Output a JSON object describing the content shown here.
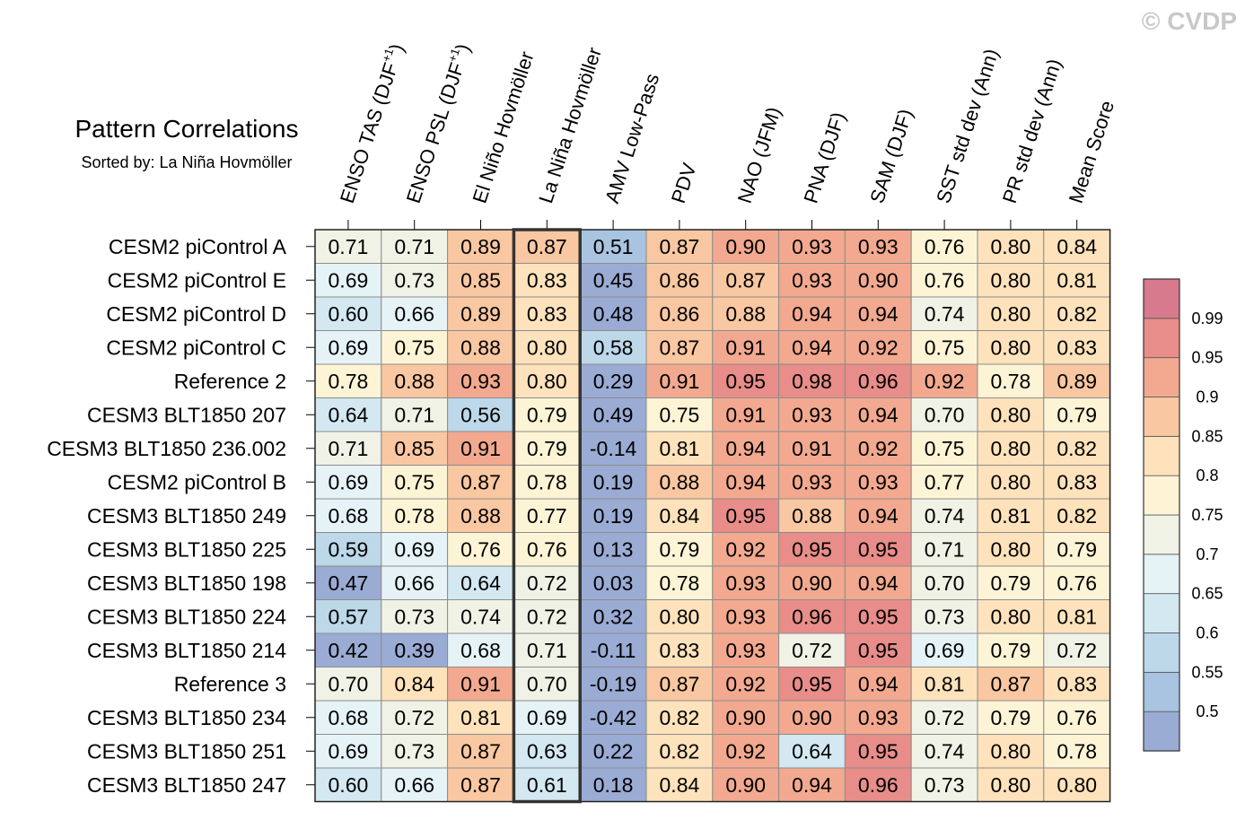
{
  "watermark": "© CVDP",
  "chart_data": {
    "type": "heatmap",
    "title": "Pattern Correlations",
    "subtitle": "Sorted by: La Niña Hovmöller",
    "columns": [
      {
        "name": "ENSO TAS (DJF",
        "sup": "+1",
        "close": ")"
      },
      {
        "name": "ENSO PSL (DJF",
        "sup": "+1",
        "close": ")"
      },
      {
        "name": "El Niño Hovmöller",
        "sup": "",
        "close": ""
      },
      {
        "name": "La Niña Hovmöller",
        "sup": "",
        "close": ""
      },
      {
        "name": "AMV Low-Pass",
        "sup": "",
        "close": ""
      },
      {
        "name": "PDV",
        "sup": "",
        "close": ""
      },
      {
        "name": "NAO (JFM)",
        "sup": "",
        "close": ""
      },
      {
        "name": "PNA (DJF)",
        "sup": "",
        "close": ""
      },
      {
        "name": "SAM (DJF)",
        "sup": "",
        "close": ""
      },
      {
        "name": "SST std dev (Ann)",
        "sup": "",
        "close": ""
      },
      {
        "name": "PR std dev (Ann)",
        "sup": "",
        "close": ""
      },
      {
        "name": "Mean Score",
        "sup": "",
        "close": ""
      }
    ],
    "rows": [
      "CESM2 piControl A",
      "CESM2 piControl E",
      "CESM2 piControl D",
      "CESM2 piControl C",
      "Reference 2",
      "CESM3 BLT1850 207",
      "CESM3 BLT1850 236.002",
      "CESM2 piControl B",
      "CESM3 BLT1850 249",
      "CESM3 BLT1850 225",
      "CESM3 BLT1850 198",
      "CESM3 BLT1850 224",
      "CESM3 BLT1850 214",
      "Reference 3",
      "CESM3 BLT1850 234",
      "CESM3 BLT1850 251",
      "CESM3 BLT1850 247"
    ],
    "values": [
      [
        "0.71",
        "0.71",
        "0.89",
        "0.87",
        "0.51",
        "0.87",
        "0.90",
        "0.93",
        "0.93",
        "0.76",
        "0.80",
        "0.84"
      ],
      [
        "0.69",
        "0.73",
        "0.85",
        "0.83",
        "0.45",
        "0.86",
        "0.87",
        "0.93",
        "0.90",
        "0.76",
        "0.80",
        "0.81"
      ],
      [
        "0.60",
        "0.66",
        "0.89",
        "0.83",
        "0.48",
        "0.86",
        "0.88",
        "0.94",
        "0.94",
        "0.74",
        "0.80",
        "0.82"
      ],
      [
        "0.69",
        "0.75",
        "0.88",
        "0.80",
        "0.58",
        "0.87",
        "0.91",
        "0.94",
        "0.92",
        "0.75",
        "0.80",
        "0.83"
      ],
      [
        "0.78",
        "0.88",
        "0.93",
        "0.80",
        "0.29",
        "0.91",
        "0.95",
        "0.98",
        "0.96",
        "0.92",
        "0.78",
        "0.89"
      ],
      [
        "0.64",
        "0.71",
        "0.56",
        "0.79",
        "0.49",
        "0.75",
        "0.91",
        "0.93",
        "0.94",
        "0.70",
        "0.80",
        "0.79"
      ],
      [
        "0.71",
        "0.85",
        "0.91",
        "0.79",
        "-0.14",
        "0.81",
        "0.94",
        "0.91",
        "0.92",
        "0.75",
        "0.80",
        "0.82"
      ],
      [
        "0.69",
        "0.75",
        "0.87",
        "0.78",
        "0.19",
        "0.88",
        "0.94",
        "0.93",
        "0.93",
        "0.77",
        "0.80",
        "0.83"
      ],
      [
        "0.68",
        "0.78",
        "0.88",
        "0.77",
        "0.19",
        "0.84",
        "0.95",
        "0.88",
        "0.94",
        "0.74",
        "0.81",
        "0.82"
      ],
      [
        "0.59",
        "0.69",
        "0.76",
        "0.76",
        "0.13",
        "0.79",
        "0.92",
        "0.95",
        "0.95",
        "0.71",
        "0.80",
        "0.79"
      ],
      [
        "0.47",
        "0.66",
        "0.64",
        "0.72",
        "0.03",
        "0.78",
        "0.93",
        "0.90",
        "0.94",
        "0.70",
        "0.79",
        "0.76"
      ],
      [
        "0.57",
        "0.73",
        "0.74",
        "0.72",
        "0.32",
        "0.80",
        "0.93",
        "0.96",
        "0.95",
        "0.73",
        "0.80",
        "0.81"
      ],
      [
        "0.42",
        "0.39",
        "0.68",
        "0.71",
        "-0.11",
        "0.83",
        "0.93",
        "0.72",
        "0.95",
        "0.69",
        "0.79",
        "0.72"
      ],
      [
        "0.70",
        "0.84",
        "0.91",
        "0.70",
        "-0.19",
        "0.87",
        "0.92",
        "0.95",
        "0.94",
        "0.81",
        "0.87",
        "0.83"
      ],
      [
        "0.68",
        "0.72",
        "0.81",
        "0.69",
        "-0.42",
        "0.82",
        "0.90",
        "0.90",
        "0.93",
        "0.72",
        "0.79",
        "0.76"
      ],
      [
        "0.69",
        "0.73",
        "0.87",
        "0.63",
        "0.22",
        "0.82",
        "0.92",
        "0.64",
        "0.95",
        "0.74",
        "0.80",
        "0.78"
      ],
      [
        "0.60",
        "0.66",
        "0.87",
        "0.61",
        "0.18",
        "0.84",
        "0.90",
        "0.94",
        "0.96",
        "0.73",
        "0.80",
        "0.80"
      ]
    ],
    "highlight_column": "La Niña Hovmöller",
    "colorbar": {
      "labels": [
        "0.99",
        "0.95",
        "0.9",
        "0.85",
        "0.8",
        "0.75",
        "0.7",
        "0.65",
        "0.6",
        "0.55",
        "0.5"
      ],
      "thresholds": [
        0.5,
        0.55,
        0.6,
        0.65,
        0.7,
        0.75,
        0.8,
        0.85,
        0.9,
        0.95,
        0.99
      ],
      "colors_low_to_high": [
        "#9aabd4",
        "#a9c4e0",
        "#bcd8e9",
        "#d3e8f1",
        "#e6f3f6",
        "#f1f2e6",
        "#fdf4d6",
        "#fde2bb",
        "#f9c7a1",
        "#f2a98f",
        "#e88d89",
        "#d77a8e"
      ]
    }
  }
}
